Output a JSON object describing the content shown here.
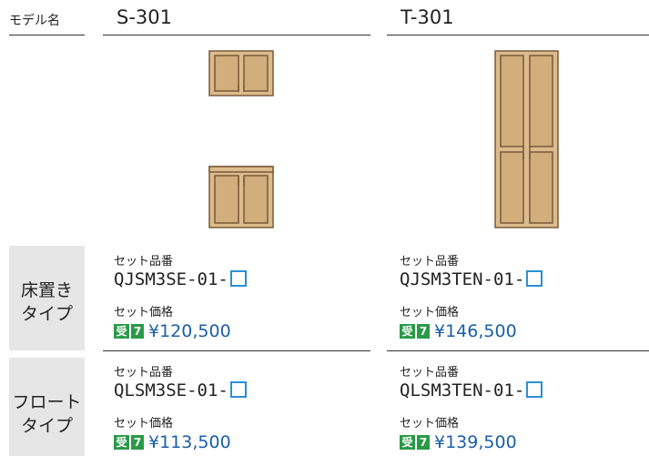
{
  "header": {
    "label": "モデル名",
    "models": [
      "S-301",
      "T-301"
    ]
  },
  "rows": [
    {
      "label": [
        "床置き",
        "タイプ"
      ],
      "cells": [
        {
          "code_label": "セット品番",
          "code": "QJSM3SE-01-",
          "price_label": "セット価格",
          "badge": [
            "受",
            "7"
          ],
          "price": "¥120,500"
        },
        {
          "code_label": "セット品番",
          "code": "QJSM3TEN-01-",
          "price_label": "セット価格",
          "badge": [
            "受",
            "7"
          ],
          "price": "¥146,500"
        }
      ]
    },
    {
      "label": [
        "フロート",
        "タイプ"
      ],
      "cells": [
        {
          "code_label": "セット品番",
          "code": "QLSM3SE-01-",
          "price_label": "セット価格",
          "badge": [
            "受",
            "7"
          ],
          "price": "¥113,500"
        },
        {
          "code_label": "セット品番",
          "code": "QLSM3TEN-01-",
          "price_label": "セット価格",
          "badge": [
            "受",
            "7"
          ],
          "price": "¥139,500"
        }
      ]
    }
  ]
}
